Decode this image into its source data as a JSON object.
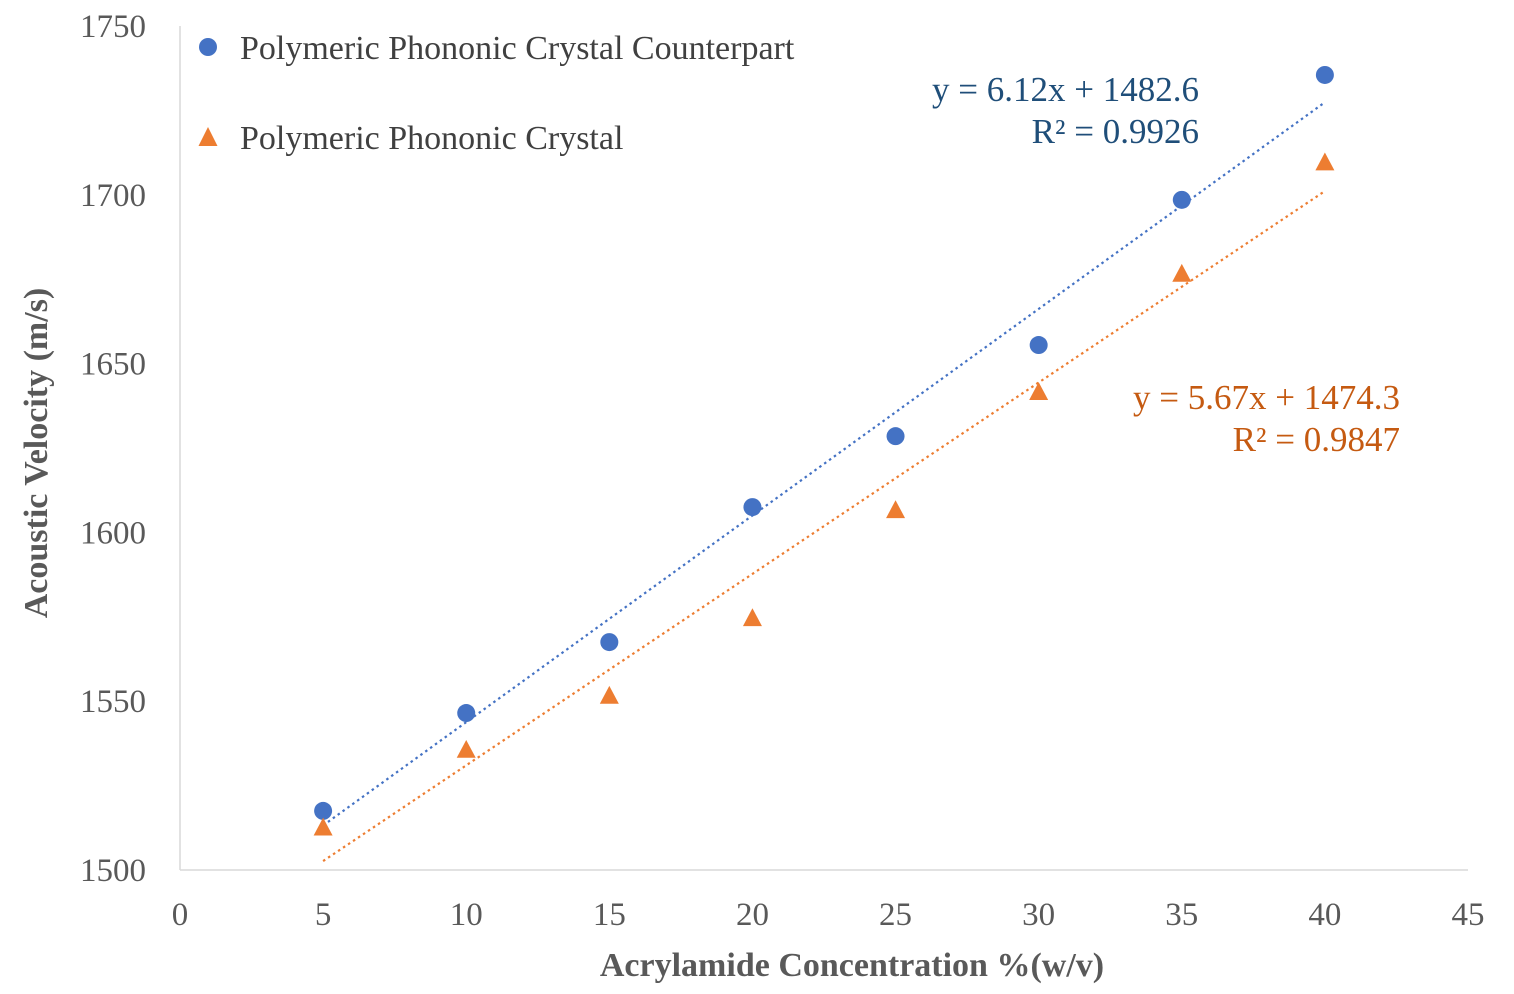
{
  "chart_data": {
    "type": "scatter",
    "title": "",
    "xlabel": "Acrylamide Concentration %(w/v)",
    "ylabel": "Acoustic Velocity (m/s)",
    "xlim": [
      0,
      45
    ],
    "ylim": [
      1500,
      1750
    ],
    "x_ticks": [
      0,
      5,
      10,
      15,
      20,
      25,
      30,
      35,
      40,
      45
    ],
    "y_ticks": [
      1500,
      1550,
      1600,
      1650,
      1700,
      1750
    ],
    "grid": false,
    "legend_position": "top-left",
    "trendline_style": "dotted linear",
    "series": [
      {
        "name": "Polymeric Phononic Crystal Counterpart",
        "marker": "circle",
        "color": "#4472C4",
        "x": [
          5,
          10,
          15,
          20,
          25,
          30,
          35,
          40
        ],
        "y": [
          1517.5,
          1546.5,
          1567.5,
          1607.5,
          1628.5,
          1655.5,
          1698.5,
          1735.5
        ],
        "trendline": {
          "slope": 6.12,
          "intercept": 1482.6,
          "equation": "y = 6.12x + 1482.6",
          "r2": "R² = 0.9926",
          "label_color": "#1F4E79"
        }
      },
      {
        "name": "Polymeric Phononic Crystal",
        "marker": "triangle",
        "color": "#ED7D31",
        "x": [
          5,
          10,
          15,
          20,
          25,
          30,
          35,
          40
        ],
        "y": [
          1512.5,
          1535.5,
          1551.5,
          1574.5,
          1606.5,
          1641.5,
          1676.5,
          1709.5
        ],
        "trendline": {
          "slope": 5.67,
          "intercept": 1474.3,
          "equation": "y = 5.67x + 1474.3",
          "r2": "R² = 0.9847",
          "label_color": "#C55A11"
        }
      }
    ]
  }
}
